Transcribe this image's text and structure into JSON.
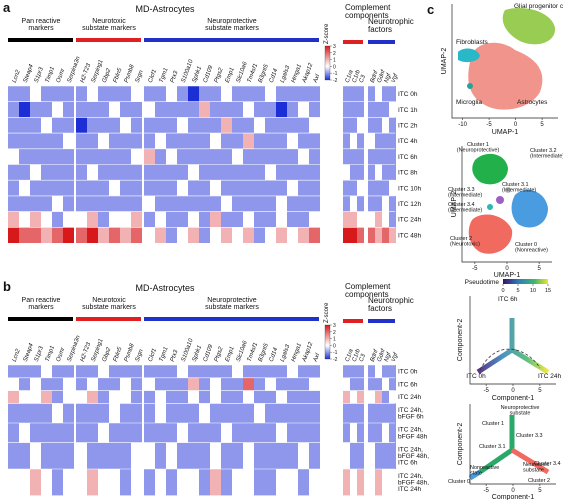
{
  "panel_a": {
    "letter": "a",
    "title": "MD-Astrocytes",
    "groups": [
      {
        "name": [
          "Pan reactive",
          "markers"
        ],
        "color": "#000000",
        "genes": [
          "Lcn2",
          "Steap4",
          "S1pr3",
          "Timp1",
          "Osmr",
          "Serpina3n"
        ]
      },
      {
        "name": [
          "Neurotoxic",
          "substate markers"
        ],
        "color": "#e02020",
        "genes": [
          "H2-T23",
          "Serping1",
          "Gbp2",
          "Fbln5",
          "Psmb8",
          "Srgn"
        ]
      },
      {
        "name": [
          "Neuroprotective",
          "substate markers"
        ],
        "color": "#2030c8",
        "genes": [
          "Clcf1",
          "Tgm1",
          "Ptx3",
          "S100a10",
          "Sphk1",
          "Cd109",
          "Ptgs2",
          "Emp1",
          "Slc10a6",
          "Tm4sf1",
          "B3gnt5",
          "Cd14",
          "Lgals3",
          "Hmga1",
          "Akap12",
          "Axl"
        ]
      }
    ],
    "side_groups": [
      {
        "name": [
          "Complement",
          "components"
        ],
        "color": "#e02020",
        "genes": [
          "C1ra",
          "C1rb",
          "C3"
        ]
      },
      {
        "name": [
          "Neurotrophic",
          "factors"
        ],
        "color": "#2030c8",
        "genes": [
          "Bdnf",
          "Gdnf",
          "Ngf",
          "Vgf"
        ]
      }
    ],
    "colorbar": {
      "label": "Z-score",
      "ticks": [
        -2,
        -1,
        0,
        1,
        2,
        3
      ]
    },
    "rows": [
      {
        "label": [
          "ITC 0h"
        ],
        "values": [
          -1,
          -1,
          0,
          -1,
          -1,
          -1,
          -1,
          0,
          -1,
          -1,
          -1,
          0,
          -1,
          -1,
          0,
          -1,
          -2,
          -1,
          -1,
          0,
          -1,
          -1,
          -1,
          0,
          -1,
          -1,
          -1,
          -1,
          -1,
          -1,
          -1,
          -1,
          0,
          -1,
          -1
        ]
      },
      {
        "label": [
          "ITC 1h"
        ],
        "values": [
          -1,
          -2,
          -1,
          -1,
          0,
          -1,
          -1,
          -1,
          -1,
          0,
          -1,
          -1,
          0,
          -1,
          -1,
          -1,
          -1,
          1,
          -1,
          -1,
          -1,
          0,
          -1,
          -1,
          -2,
          -1,
          0,
          -1,
          -1,
          -1,
          -1,
          -1,
          -1,
          -1,
          0
        ]
      },
      {
        "label": [
          "ITC 2h"
        ],
        "values": [
          -1,
          -1,
          -1,
          0,
          -1,
          -1,
          -2,
          -1,
          -1,
          -1,
          0,
          -1,
          -1,
          -1,
          -1,
          0,
          -1,
          -1,
          -1,
          1,
          -1,
          -1,
          0,
          -1,
          -1,
          -1,
          -1,
          0,
          -1,
          -1,
          0,
          -1,
          -1,
          0,
          -1
        ]
      },
      {
        "label": [
          "ITC 4h"
        ],
        "values": [
          -1,
          -1,
          -1,
          -1,
          -1,
          0,
          -1,
          -1,
          0,
          -1,
          -1,
          -1,
          -1,
          0,
          -1,
          -1,
          -1,
          -1,
          0,
          -1,
          -1,
          1,
          -1,
          -1,
          -1,
          0,
          -1,
          -1,
          -1,
          0,
          -1,
          0,
          -1,
          -1,
          -1
        ]
      },
      {
        "label": [
          "ITC 6h"
        ],
        "values": [
          0,
          -1,
          -1,
          -1,
          -1,
          -1,
          -1,
          -1,
          -1,
          -1,
          -1,
          0,
          1,
          -1,
          0,
          -1,
          -1,
          -1,
          -1,
          -1,
          0,
          -1,
          -1,
          -1,
          -1,
          -1,
          0,
          -1,
          -1,
          -1,
          -1,
          -1,
          -1,
          -1,
          -1
        ]
      },
      {
        "label": [
          "ITC 8h"
        ],
        "values": [
          -1,
          -1,
          0,
          -1,
          -1,
          -1,
          -1,
          0,
          -1,
          -1,
          -1,
          -1,
          -1,
          -1,
          -1,
          -1,
          0,
          -1,
          -1,
          -1,
          -1,
          -1,
          -1,
          0,
          -1,
          -1,
          -1,
          -1,
          0,
          -1,
          -1,
          -1,
          0,
          -1,
          -1
        ]
      },
      {
        "label": [
          "ITC 10h"
        ],
        "values": [
          -1,
          0,
          -1,
          -1,
          -1,
          -1,
          -1,
          -1,
          -1,
          0,
          -1,
          -1,
          -1,
          -1,
          -1,
          0,
          -1,
          -1,
          0,
          -1,
          -1,
          -1,
          -1,
          -1,
          -1,
          0,
          -1,
          -1,
          -1,
          -1,
          0,
          -1,
          -1,
          -1,
          0
        ]
      },
      {
        "label": [
          "ITC 12h"
        ],
        "values": [
          -1,
          -1,
          -1,
          -1,
          0,
          -1,
          -1,
          -1,
          -1,
          -1,
          -1,
          -1,
          0,
          -1,
          -1,
          -1,
          -1,
          -1,
          -1,
          0,
          -1,
          -1,
          -1,
          -1,
          0,
          -1,
          -1,
          -1,
          -1,
          0,
          -1,
          -1,
          -1,
          0,
          -1
        ]
      },
      {
        "label": [
          "ITC 24h"
        ],
        "values": [
          1,
          0,
          1,
          0,
          -1,
          0,
          0,
          1,
          -1,
          0,
          0,
          1,
          -1,
          0,
          -1,
          -1,
          0,
          -1,
          1,
          -1,
          -1,
          0,
          -1,
          -1,
          0,
          -1,
          -1,
          0,
          1,
          1,
          0,
          0,
          1,
          0,
          -1
        ]
      },
      {
        "label": [
          "ITC 48h"
        ],
        "values": [
          3,
          2,
          2,
          1,
          2,
          3,
          2,
          3,
          1,
          2,
          1,
          2,
          0,
          1,
          -1,
          0,
          1,
          -1,
          0,
          1,
          0,
          1,
          -1,
          0,
          1,
          0,
          1,
          2,
          3,
          3,
          2,
          2,
          1,
          2,
          1
        ]
      }
    ]
  },
  "panel_b": {
    "letter": "b",
    "title": "MD-Astrocytes",
    "groups": [
      {
        "name": [
          "Pan reactive",
          "markers"
        ],
        "color": "#000000",
        "genes": [
          "Lcn2",
          "Steap4",
          "S1pr3",
          "Timp1",
          "Osmr",
          "Serpina3n"
        ]
      },
      {
        "name": [
          "Neurotoxic",
          "substate markers"
        ],
        "color": "#e02020",
        "genes": [
          "H2-T23",
          "Serping1",
          "Gbp2",
          "Fbln5",
          "Psmb8",
          "Srgn"
        ]
      },
      {
        "name": [
          "Neuroprotective",
          "substate markers"
        ],
        "color": "#2030c8",
        "genes": [
          "Clcf1",
          "Tgm1",
          "Ptx3",
          "S100a10",
          "Sphk1",
          "Cd109",
          "Ptgs2",
          "Emp1",
          "Slc10a6",
          "Tm4sf1",
          "B3gnt5",
          "Cd14",
          "Lgals3",
          "Hmga1",
          "Akap12",
          "Axl"
        ]
      }
    ],
    "side_groups": [
      {
        "name": [
          "Complement",
          "components"
        ],
        "color": "#e02020",
        "genes": [
          "C1ra",
          "C1rb",
          "C3"
        ]
      },
      {
        "name": [
          "Neurotrophic",
          "factors"
        ],
        "color": "#2030c8",
        "genes": [
          "Bdnf",
          "Gdnf",
          "Ngf",
          "Vgf"
        ]
      }
    ],
    "colorbar": {
      "label": "Z-score",
      "ticks": [
        -2,
        -1,
        0,
        1,
        2,
        3
      ]
    },
    "rows": [
      {
        "label": [
          "ITC 0h"
        ],
        "values": [
          -1,
          -1,
          -1,
          0,
          -1,
          -1,
          -1,
          -1,
          0,
          -1,
          -1,
          -1,
          -1,
          -1,
          -1,
          0,
          -1,
          -1,
          -1,
          -1,
          0,
          -1,
          -1,
          -1,
          -1,
          0,
          -1,
          -1,
          -1,
          -1,
          -1,
          -1,
          0,
          -1,
          -1
        ]
      },
      {
        "label": [
          "ITC 6h"
        ],
        "values": [
          0,
          -1,
          0,
          -1,
          -1,
          0,
          -1,
          0,
          -1,
          -1,
          0,
          -1,
          0,
          -1,
          -1,
          -1,
          1,
          -1,
          0,
          -1,
          -1,
          2,
          -1,
          0,
          -1,
          -1,
          -1,
          0,
          0,
          -1,
          -1,
          -1,
          -1,
          0,
          -1
        ]
      },
      {
        "label": [
          "ITC 24h"
        ],
        "values": [
          1,
          0,
          0,
          1,
          -1,
          0,
          0,
          1,
          -1,
          0,
          0,
          -1,
          -1,
          0,
          -1,
          -1,
          0,
          -1,
          0,
          -1,
          -1,
          0,
          -1,
          -1,
          0,
          -1,
          -1,
          -1,
          1,
          0,
          1,
          0,
          1,
          -1,
          0
        ]
      },
      {
        "label": [
          "ITC 24h,",
          "bFGF 6h"
        ],
        "values": [
          -1,
          -1,
          -1,
          -1,
          0,
          -1,
          -1,
          -1,
          -1,
          0,
          -1,
          -1,
          -1,
          0,
          -1,
          -1,
          -1,
          0,
          -1,
          -1,
          -1,
          -1,
          0,
          -1,
          -1,
          -1,
          -1,
          -1,
          -1,
          -1,
          -1,
          -1,
          -1,
          -1,
          -1
        ]
      },
      {
        "label": [
          "ITC 24h,",
          "bFGF 48h"
        ],
        "values": [
          -1,
          0,
          -1,
          -1,
          -1,
          -1,
          -1,
          -1,
          0,
          -1,
          -1,
          -1,
          -1,
          -1,
          -1,
          0,
          -1,
          -1,
          -1,
          0,
          -1,
          -1,
          -1,
          -1,
          0,
          -1,
          -1,
          -1,
          -1,
          0,
          -1,
          -1,
          -1,
          0,
          -1
        ]
      },
      {
        "label": [
          "ITC 24h,",
          "bFGF 48h,",
          "ITC 6h"
        ],
        "values": [
          -1,
          -1,
          0,
          -1,
          -1,
          -1,
          0,
          -1,
          -1,
          -1,
          -1,
          0,
          0,
          -1,
          0,
          -1,
          -1,
          -1,
          0,
          -1,
          -1,
          0,
          -1,
          -1,
          -1,
          -1,
          0,
          -1,
          0,
          -1,
          -1,
          0,
          -1,
          -1,
          -1
        ]
      },
      {
        "label": [
          "ITC 24h,",
          "bFGF 48h,",
          "ITC 24h"
        ],
        "values": [
          0,
          0,
          1,
          0,
          -1,
          0,
          0,
          1,
          0,
          0,
          -1,
          0,
          -1,
          0,
          -1,
          0,
          0,
          -1,
          1,
          -1,
          0,
          0,
          -1,
          -1,
          0,
          0,
          -1,
          0,
          1,
          0,
          1,
          0,
          1,
          0,
          0
        ]
      }
    ]
  },
  "panel_c": {
    "letter": "c",
    "umap_all": {
      "xlabel": "UMAP-1",
      "ylabel": "UMAP-2",
      "xlim": [
        -12,
        8
      ],
      "xticks": [
        -10,
        -5,
        0,
        5
      ],
      "labels": [
        [
          "Glial progenitor cells"
        ],
        [
          "Fibroblasts"
        ],
        [
          "Microglia"
        ],
        [
          "Astrocytes"
        ]
      ]
    },
    "umap_astro": {
      "xlabel": "UMAP-1",
      "ylabel": "UMAP-2",
      "xlim": [
        -7,
        7
      ],
      "xticks": [
        -5,
        0,
        5
      ],
      "labels": [
        [
          "Cluster 1",
          "(Neuroprotective)"
        ],
        [
          "Cluster 3.2",
          "(Intermediate)"
        ],
        [
          "Cluster 3.1",
          "(Intermediate)"
        ],
        [
          "Cluster 3.3",
          "(Intermediate)"
        ],
        [
          "Cluster 3.4",
          "(Intermediate)"
        ],
        [
          "Cluster 2",
          "(Neurotoxic)"
        ],
        [
          "Cluster 0",
          "(Nonreactive)"
        ]
      ]
    },
    "pseudotime": {
      "label": "Pseudotime",
      "ticks": [
        0,
        5,
        10,
        15
      ]
    },
    "traj_time": {
      "xlabel": "Component-1",
      "ylabel": "Component-2",
      "xlim": [
        -8,
        8
      ],
      "xticks": [
        -5,
        0,
        5
      ],
      "labels": [
        [
          "ITC 6h"
        ],
        [
          "ITC 0h"
        ],
        [
          "ITC 24h"
        ]
      ]
    },
    "traj_state": {
      "xlabel": "Component-1",
      "ylabel": "Component-2",
      "xlim": [
        -8,
        8
      ],
      "xticks": [
        -5,
        0,
        5
      ],
      "labels": [
        [
          "Neuroprotective",
          "substate"
        ],
        [
          "Cluster 1"
        ],
        [
          "Cluster 3.3"
        ],
        [
          "Cluster 3.1"
        ],
        [
          "Cluster 3.4"
        ],
        [
          "Nonreactive",
          "state"
        ],
        [
          "Neurotoxic",
          "substate"
        ],
        [
          "Cluster 0"
        ],
        [
          "Cluster 2"
        ]
      ]
    }
  }
}
